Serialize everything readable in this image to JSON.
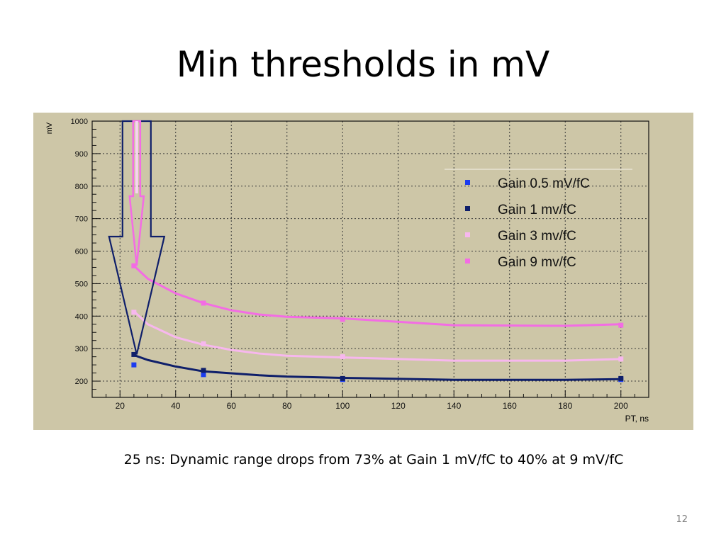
{
  "slide": {
    "title": "Min thresholds in mV",
    "caption": "25 ns:  Dynamic range drops from 73% at Gain 1 mV/fC to 40% at 9 mV/fC",
    "page_number": "12"
  },
  "colors": {
    "plot_background": "#cdc6a7",
    "gain_0_5": "#1c3cf0",
    "gain_1": "#0f1f6a",
    "gain_3": "#f7b7ee",
    "gain_9": "#f36ce4"
  },
  "chart_data": {
    "type": "scatter",
    "title": "",
    "xlabel": "PT, ns",
    "ylabel": "mV",
    "xlim": [
      10,
      210
    ],
    "ylim": [
      150,
      1000
    ],
    "x_ticks": [
      20,
      40,
      60,
      80,
      100,
      120,
      140,
      160,
      180,
      200
    ],
    "y_ticks": [
      200,
      300,
      400,
      500,
      600,
      700,
      800,
      900,
      1000
    ],
    "grid": true,
    "legend_position": "top-right",
    "series": [
      {
        "name": "Gain 0.5 mV/fC",
        "color": "#1c3cf0",
        "points": [
          [
            25,
            250
          ],
          [
            50,
            220
          ],
          [
            100,
            205
          ],
          [
            200,
            205
          ]
        ]
      },
      {
        "name": "Gain 1 mv/fC",
        "color": "#0f1f6a",
        "points": [
          [
            25,
            282
          ],
          [
            50,
            233
          ],
          [
            100,
            208
          ],
          [
            200,
            208
          ]
        ],
        "fit": [
          [
            25,
            280
          ],
          [
            30,
            265
          ],
          [
            40,
            245
          ],
          [
            50,
            230
          ],
          [
            60,
            224
          ],
          [
            70,
            218
          ],
          [
            80,
            214
          ],
          [
            100,
            210
          ],
          [
            140,
            204
          ],
          [
            180,
            204
          ],
          [
            200,
            206
          ]
        ]
      },
      {
        "name": "Gain 3 mv/fC",
        "color": "#f7b7ee",
        "points": [
          [
            25,
            412
          ],
          [
            50,
            315
          ],
          [
            100,
            275
          ],
          [
            200,
            268
          ]
        ],
        "fit": [
          [
            25,
            415
          ],
          [
            30,
            375
          ],
          [
            40,
            335
          ],
          [
            50,
            312
          ],
          [
            60,
            296
          ],
          [
            70,
            285
          ],
          [
            80,
            278
          ],
          [
            100,
            273
          ],
          [
            140,
            263
          ],
          [
            180,
            263
          ],
          [
            200,
            268
          ]
        ]
      },
      {
        "name": "Gain 9 mv/fC",
        "color": "#f36ce4",
        "points": [
          [
            25,
            555
          ],
          [
            50,
            440
          ],
          [
            100,
            390
          ],
          [
            200,
            372
          ]
        ],
        "fit": [
          [
            25,
            555
          ],
          [
            30,
            515
          ],
          [
            40,
            470
          ],
          [
            50,
            440
          ],
          [
            60,
            418
          ],
          [
            70,
            405
          ],
          [
            80,
            398
          ],
          [
            100,
            393
          ],
          [
            140,
            372
          ],
          [
            180,
            370
          ],
          [
            200,
            375
          ]
        ]
      }
    ],
    "annotations": [
      {
        "type": "down-arrow",
        "x": 26,
        "from_y": 1000,
        "to_y": 282,
        "color": "#0f1f6a",
        "label": ""
      },
      {
        "type": "down-arrow",
        "x": 26,
        "from_y": 1000,
        "to_y": 555,
        "color": "#f36ce4",
        "label": ""
      }
    ]
  }
}
